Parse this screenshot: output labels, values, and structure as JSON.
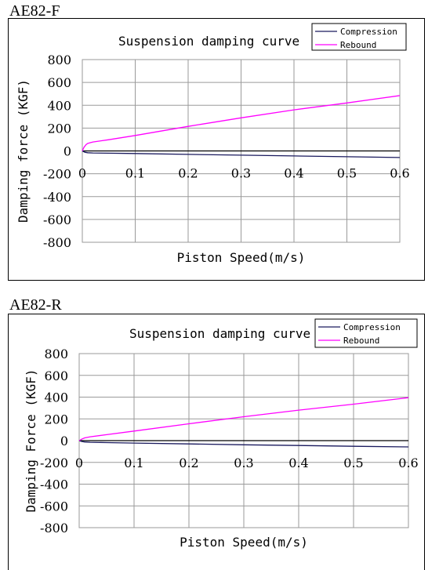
{
  "colors": {
    "compression": "#1a1a5e",
    "rebound": "#ff00ff",
    "grid": "#9a9a9a",
    "zero_line": "#000000"
  },
  "charts": [
    {
      "label": "AE82-F"
    },
    {
      "label": "AE82-R"
    }
  ],
  "chart_data": [
    {
      "type": "line",
      "title": "Suspension damping curve",
      "xlabel": "Piston Speed(m/s)",
      "ylabel": "Damping force (KGF)",
      "xlim": [
        0,
        0.6
      ],
      "ylim": [
        -800,
        800
      ],
      "x_ticks": [
        "0",
        "0.1",
        "0.2",
        "0.3",
        "0.4",
        "0.5",
        "0.6"
      ],
      "y_ticks": [
        "800",
        "600",
        "400",
        "200",
        "0",
        "-200",
        "-400",
        "-600",
        "-800"
      ],
      "grid": true,
      "legend_position": "top-right",
      "series": [
        {
          "name": "Compression",
          "x": [
            0,
            0.005,
            0.01,
            0.02,
            0.05,
            0.1,
            0.2,
            0.3,
            0.4,
            0.5,
            0.6
          ],
          "y": [
            0,
            -12,
            -16,
            -18,
            -20,
            -23,
            -30,
            -37,
            -44,
            -51,
            -58
          ]
        },
        {
          "name": "Rebound",
          "x": [
            0,
            0.003,
            0.007,
            0.01,
            0.015,
            0.02,
            0.05,
            0.1,
            0.2,
            0.3,
            0.4,
            0.5,
            0.6
          ],
          "y": [
            0,
            30,
            55,
            65,
            72,
            78,
            98,
            135,
            215,
            290,
            360,
            420,
            485
          ]
        }
      ]
    },
    {
      "type": "line",
      "title": "Suspension damping curve",
      "xlabel": "Piston Speed(m/s)",
      "ylabel": "Damping Force (KGF)",
      "xlim": [
        0,
        0.6
      ],
      "ylim": [
        -800,
        800
      ],
      "x_ticks": [
        "0",
        "0.1",
        "0.2",
        "0.3",
        "0.4",
        "0.5",
        "0.6"
      ],
      "y_ticks": [
        "800",
        "600",
        "400",
        "200",
        "0",
        "-200",
        "-400",
        "-600",
        "-800"
      ],
      "grid": true,
      "legend_position": "top-right",
      "series": [
        {
          "name": "Compression",
          "x": [
            0,
            0.005,
            0.01,
            0.02,
            0.05,
            0.1,
            0.2,
            0.3,
            0.4,
            0.5,
            0.6
          ],
          "y": [
            0,
            -8,
            -12,
            -15,
            -18,
            -22,
            -30,
            -38,
            -45,
            -52,
            -58
          ]
        },
        {
          "name": "Rebound",
          "x": [
            0,
            0.005,
            0.01,
            0.02,
            0.05,
            0.1,
            0.2,
            0.3,
            0.4,
            0.5,
            0.6
          ],
          "y": [
            0,
            15,
            25,
            35,
            55,
            88,
            155,
            220,
            280,
            335,
            395
          ]
        }
      ]
    }
  ]
}
